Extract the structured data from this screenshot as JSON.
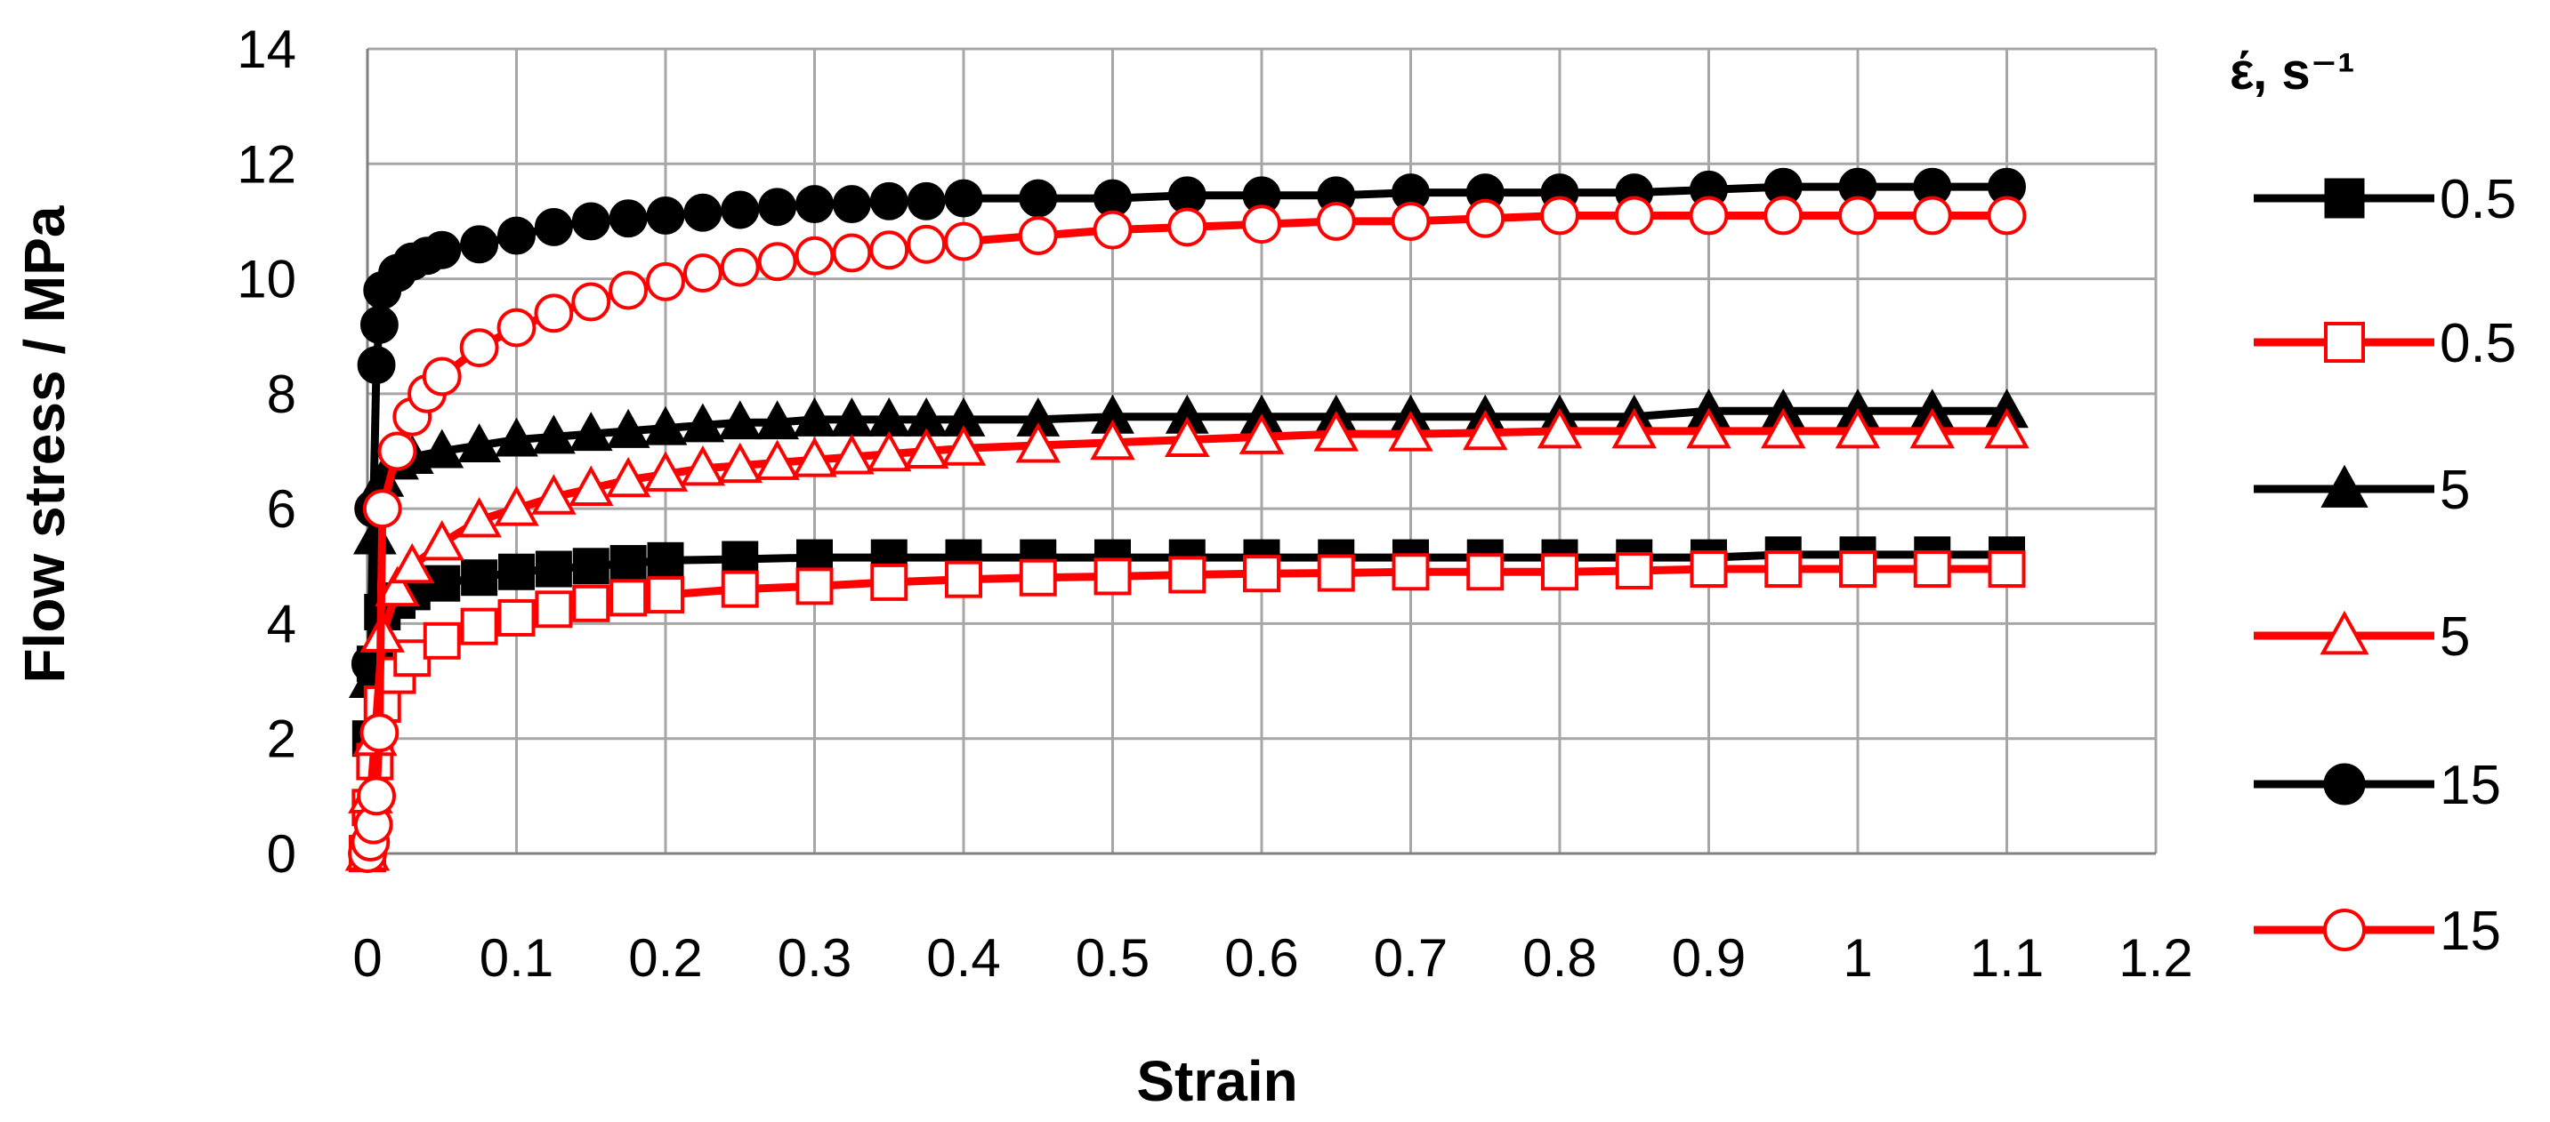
{
  "chart_data": {
    "type": "line",
    "xlabel": "Strain",
    "ylabel": "Flow stress / MPa",
    "xlim": [
      0,
      1.2
    ],
    "ylim": [
      0,
      14
    ],
    "xticks": [
      "0",
      "0.1",
      "0.2",
      "0.3",
      "0.4",
      "0.5",
      "0.6",
      "0.7",
      "0.8",
      "0.9",
      "1",
      "1.1",
      "1.2"
    ],
    "yticks": [
      "0",
      "2",
      "4",
      "6",
      "8",
      "10",
      "12",
      "14"
    ],
    "grid": true,
    "legend_title": "έ, s⁻¹",
    "legend_position": "right",
    "series": [
      {
        "name": "0.5",
        "color": "#000000",
        "marker": "square",
        "filled": true,
        "x": [
          0,
          0.002,
          0.005,
          0.01,
          0.02,
          0.03,
          0.05,
          0.075,
          0.1,
          0.125,
          0.15,
          0.175,
          0.2,
          0.25,
          0.3,
          0.35,
          0.4,
          0.45,
          0.5,
          0.55,
          0.6,
          0.65,
          0.7,
          0.75,
          0.8,
          0.85,
          0.9,
          0.95,
          1.0,
          1.05,
          1.1
        ],
        "y": [
          0,
          2.0,
          3.3,
          4.2,
          4.4,
          4.55,
          4.7,
          4.8,
          4.9,
          4.95,
          5.0,
          5.05,
          5.1,
          5.12,
          5.15,
          5.15,
          5.15,
          5.15,
          5.15,
          5.15,
          5.15,
          5.15,
          5.15,
          5.15,
          5.15,
          5.15,
          5.15,
          5.2,
          5.2,
          5.2,
          5.2
        ]
      },
      {
        "name": "0.5",
        "color": "#ff0000",
        "marker": "square",
        "filled": false,
        "x": [
          0,
          0.002,
          0.005,
          0.01,
          0.02,
          0.03,
          0.05,
          0.075,
          0.1,
          0.125,
          0.15,
          0.175,
          0.2,
          0.25,
          0.3,
          0.35,
          0.4,
          0.45,
          0.5,
          0.55,
          0.6,
          0.65,
          0.7,
          0.75,
          0.8,
          0.85,
          0.9,
          0.95,
          1.0,
          1.05,
          1.1
        ],
        "y": [
          0,
          0.8,
          1.6,
          2.6,
          3.1,
          3.4,
          3.7,
          3.95,
          4.1,
          4.25,
          4.35,
          4.45,
          4.5,
          4.6,
          4.65,
          4.72,
          4.77,
          4.8,
          4.82,
          4.85,
          4.87,
          4.88,
          4.9,
          4.9,
          4.9,
          4.92,
          4.95,
          4.95,
          4.95,
          4.95,
          4.95
        ]
      },
      {
        "name": "5",
        "color": "#000000",
        "marker": "triangle",
        "filled": true,
        "x": [
          0,
          0.002,
          0.005,
          0.01,
          0.02,
          0.03,
          0.05,
          0.075,
          0.1,
          0.125,
          0.15,
          0.175,
          0.2,
          0.225,
          0.25,
          0.275,
          0.3,
          0.325,
          0.35,
          0.375,
          0.4,
          0.45,
          0.5,
          0.55,
          0.6,
          0.65,
          0.7,
          0.75,
          0.8,
          0.85,
          0.9,
          0.95,
          1.0,
          1.05,
          1.1
        ],
        "y": [
          0,
          3.0,
          5.5,
          6.5,
          6.8,
          6.9,
          7.0,
          7.1,
          7.2,
          7.25,
          7.3,
          7.35,
          7.4,
          7.45,
          7.5,
          7.5,
          7.55,
          7.55,
          7.55,
          7.55,
          7.55,
          7.55,
          7.6,
          7.6,
          7.6,
          7.6,
          7.6,
          7.6,
          7.6,
          7.6,
          7.7,
          7.7,
          7.7,
          7.7,
          7.7
        ]
      },
      {
        "name": "5",
        "color": "#ff0000",
        "marker": "triangle",
        "filled": false,
        "x": [
          0,
          0.002,
          0.005,
          0.01,
          0.02,
          0.03,
          0.05,
          0.075,
          0.1,
          0.125,
          0.15,
          0.175,
          0.2,
          0.225,
          0.25,
          0.275,
          0.3,
          0.325,
          0.35,
          0.375,
          0.4,
          0.45,
          0.5,
          0.55,
          0.6,
          0.65,
          0.7,
          0.75,
          0.8,
          0.85,
          0.9,
          0.95,
          1.0,
          1.05,
          1.1
        ],
        "y": [
          0,
          1.0,
          2.0,
          3.8,
          4.6,
          5.0,
          5.4,
          5.8,
          6.0,
          6.2,
          6.35,
          6.5,
          6.6,
          6.7,
          6.75,
          6.8,
          6.85,
          6.9,
          6.95,
          7.0,
          7.05,
          7.1,
          7.15,
          7.2,
          7.25,
          7.3,
          7.3,
          7.32,
          7.35,
          7.35,
          7.35,
          7.35,
          7.35,
          7.35,
          7.35
        ]
      },
      {
        "name": "15",
        "color": "#000000",
        "marker": "circle",
        "filled": true,
        "x": [
          0,
          0.002,
          0.004,
          0.006,
          0.008,
          0.01,
          0.02,
          0.03,
          0.04,
          0.05,
          0.075,
          0.1,
          0.125,
          0.15,
          0.175,
          0.2,
          0.225,
          0.25,
          0.275,
          0.3,
          0.325,
          0.35,
          0.375,
          0.4,
          0.45,
          0.5,
          0.55,
          0.6,
          0.65,
          0.7,
          0.75,
          0.8,
          0.85,
          0.9,
          0.95,
          1.0,
          1.05,
          1.1
        ],
        "y": [
          0,
          3.3,
          6.0,
          8.5,
          9.2,
          9.8,
          10.1,
          10.3,
          10.4,
          10.5,
          10.6,
          10.75,
          10.9,
          11.0,
          11.05,
          11.1,
          11.15,
          11.2,
          11.25,
          11.3,
          11.3,
          11.35,
          11.35,
          11.4,
          11.4,
          11.4,
          11.45,
          11.45,
          11.45,
          11.5,
          11.5,
          11.5,
          11.5,
          11.55,
          11.6,
          11.6,
          11.6,
          11.6
        ]
      },
      {
        "name": "15",
        "color": "#ff0000",
        "marker": "circle",
        "filled": false,
        "x": [
          0,
          0.002,
          0.004,
          0.006,
          0.008,
          0.01,
          0.02,
          0.03,
          0.04,
          0.05,
          0.075,
          0.1,
          0.125,
          0.15,
          0.175,
          0.2,
          0.225,
          0.25,
          0.275,
          0.3,
          0.325,
          0.35,
          0.375,
          0.4,
          0.45,
          0.5,
          0.55,
          0.6,
          0.65,
          0.7,
          0.75,
          0.8,
          0.85,
          0.9,
          0.95,
          1.0,
          1.05,
          1.1
        ],
        "y": [
          0,
          0.2,
          0.5,
          1.0,
          2.1,
          6.0,
          7.0,
          7.6,
          8.0,
          8.3,
          8.8,
          9.15,
          9.4,
          9.6,
          9.8,
          9.95,
          10.1,
          10.2,
          10.3,
          10.4,
          10.45,
          10.5,
          10.6,
          10.65,
          10.75,
          10.85,
          10.9,
          10.95,
          11.0,
          11.0,
          11.05,
          11.1,
          11.1,
          11.1,
          11.1,
          11.1,
          11.1,
          11.1
        ]
      }
    ]
  }
}
